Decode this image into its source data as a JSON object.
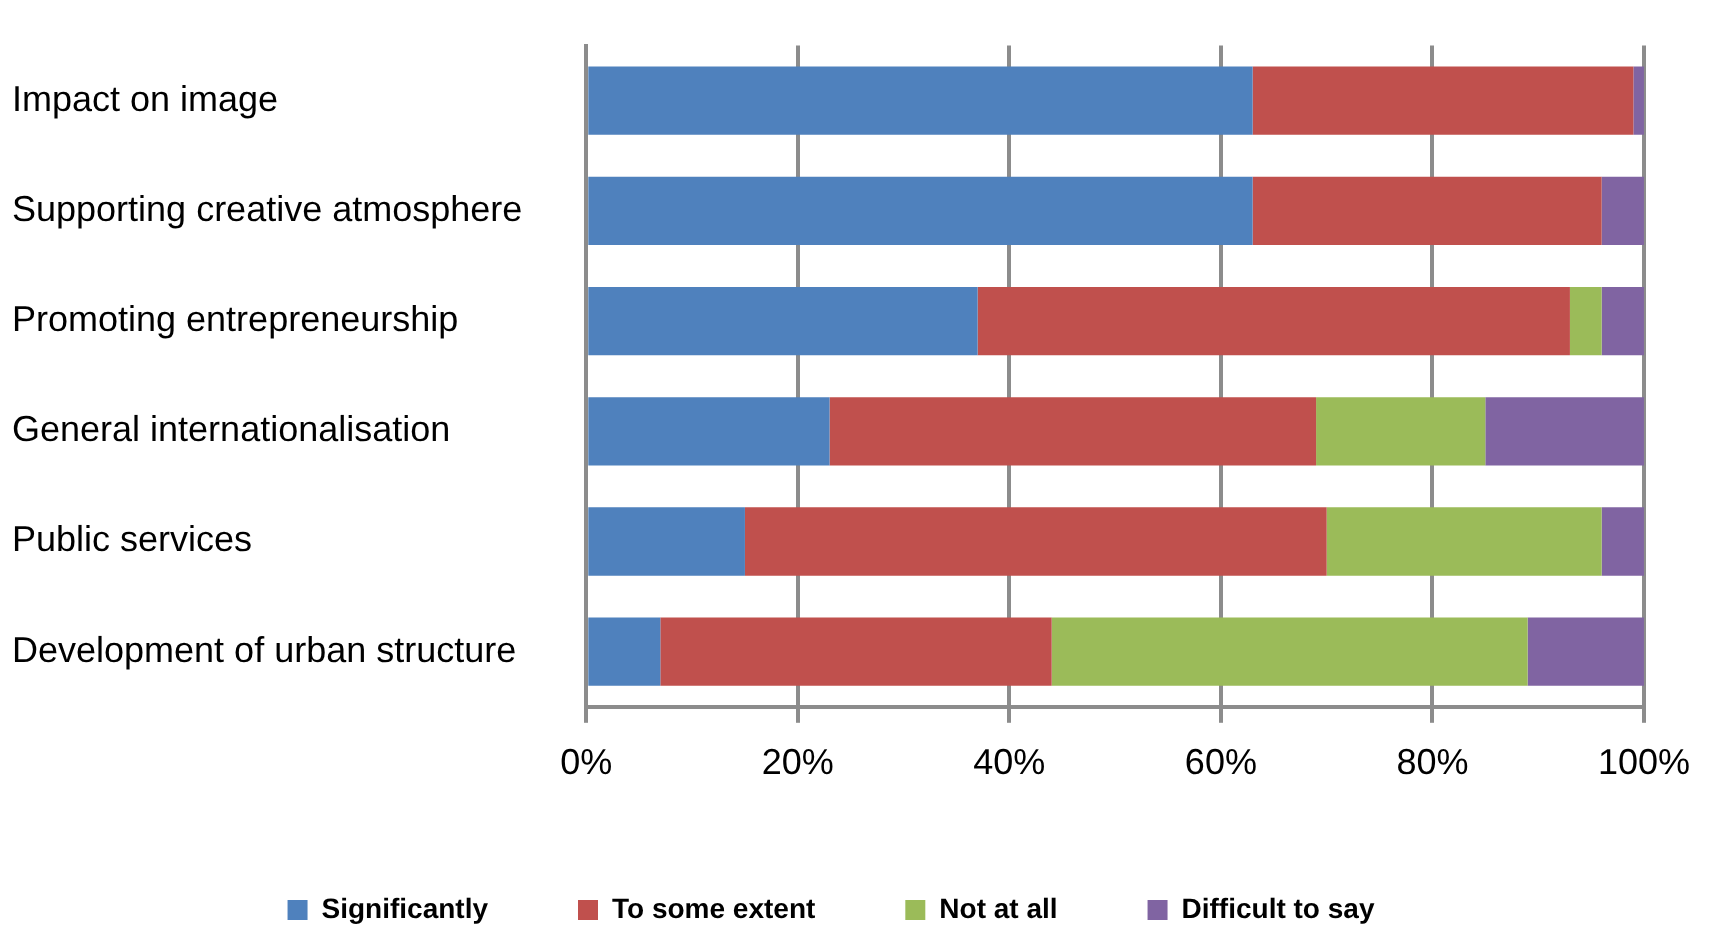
{
  "chart_data": {
    "type": "bar",
    "orientation": "horizontal",
    "stacked": true,
    "categories": [
      "Impact on image",
      "Supporting creative atmosphere",
      "Promoting entrepreneurship",
      "General internationalisation",
      "Public services",
      "Development of urban structure"
    ],
    "series": [
      {
        "name": "Significantly",
        "color": "#4f81bd",
        "values": [
          63,
          63,
          37,
          23,
          15,
          7
        ]
      },
      {
        "name": "To some extent",
        "color": "#c0504d",
        "values": [
          36,
          33,
          56,
          46,
          55,
          37
        ]
      },
      {
        "name": "Not at all",
        "color": "#9bbb59",
        "values": [
          0,
          0,
          3,
          16,
          26,
          45
        ]
      },
      {
        "name": "Difficult to say",
        "color": "#8064a2",
        "values": [
          1,
          4,
          4,
          15,
          4,
          11
        ]
      }
    ],
    "xlim": [
      0,
      100
    ],
    "xticks": [
      {
        "value": 0,
        "label": "0%"
      },
      {
        "value": 20,
        "label": "20%"
      },
      {
        "value": 40,
        "label": "40%"
      },
      {
        "value": 60,
        "label": "60%"
      },
      {
        "value": 80,
        "label": "80%"
      },
      {
        "value": 100,
        "label": "100%"
      }
    ],
    "grid": "x",
    "legend": "bottom"
  }
}
